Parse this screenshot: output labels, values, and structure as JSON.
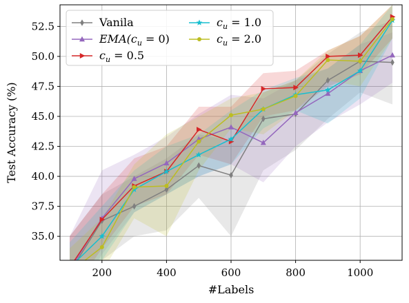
{
  "chart_data": {
    "type": "line",
    "xlabel": "#Labels",
    "ylabel": "Test Accuracy (%)",
    "xlim": [
      70,
      1130
    ],
    "ylim": [
      33.0,
      54.3
    ],
    "xticks": [
      200,
      400,
      600,
      800,
      1000
    ],
    "xtick_labels": [
      "200",
      "400",
      "600",
      "800",
      "1000"
    ],
    "yticks": [
      35.0,
      37.5,
      40.0,
      42.5,
      45.0,
      47.5,
      50.0,
      52.5
    ],
    "ytick_labels": [
      "35.0",
      "37.5",
      "40.0",
      "42.5",
      "45.0",
      "47.5",
      "50.0",
      "52.5"
    ],
    "grid": true,
    "legend_position": "top-left",
    "x": [
      100,
      200,
      300,
      400,
      500,
      600,
      700,
      800,
      900,
      1000,
      1100
    ],
    "series": [
      {
        "name": "Vanila",
        "color": "#7f7f7f",
        "marker": "diamond",
        "values": [
          32.0,
          36.3,
          37.5,
          38.9,
          40.9,
          40.1,
          44.8,
          45.2,
          48.0,
          49.6,
          49.5
        ],
        "band_low": [
          28.5,
          33.0,
          35.0,
          35.5,
          38.2,
          35.0,
          40.5,
          42.2,
          44.8,
          47.0,
          46.0
        ],
        "band_high": [
          35.0,
          38.5,
          40.0,
          41.5,
          43.5,
          43.0,
          47.0,
          48.0,
          50.2,
          52.0,
          53.0
        ]
      },
      {
        "name": "EMA(c_u = 0)",
        "color": "#9467bd",
        "marker": "triangle",
        "values": [
          32.2,
          36.5,
          39.8,
          41.1,
          43.1,
          44.1,
          42.8,
          45.3,
          46.9,
          48.8,
          50.1
        ],
        "band_low": [
          29.0,
          33.5,
          37.0,
          38.5,
          40.0,
          41.0,
          39.5,
          42.5,
          44.5,
          46.0,
          47.8
        ],
        "band_high": [
          35.0,
          40.5,
          41.8,
          43.3,
          45.2,
          46.8,
          46.5,
          48.0,
          49.0,
          51.0,
          52.0
        ]
      },
      {
        "name": "c_u = 0.5",
        "color": "#d62728",
        "marker": "triangle-right",
        "values": [
          32.4,
          36.4,
          39.2,
          40.4,
          43.9,
          42.9,
          47.3,
          47.4,
          50.0,
          50.1,
          53.3
        ],
        "band_low": [
          30.0,
          34.0,
          37.5,
          38.5,
          41.8,
          41.0,
          45.0,
          45.5,
          47.5,
          48.5,
          51.5
        ],
        "band_high": [
          35.0,
          38.5,
          41.5,
          42.5,
          45.8,
          45.8,
          48.6,
          48.8,
          50.5,
          51.7,
          54.3
        ]
      },
      {
        "name": "c_u = 1.0",
        "color": "#17becf",
        "marker": "star",
        "values": [
          32.4,
          35.0,
          38.9,
          40.4,
          41.8,
          43.1,
          45.6,
          46.8,
          47.2,
          48.8,
          53.0
        ],
        "band_low": [
          30.5,
          33.0,
          37.0,
          38.5,
          40.0,
          41.0,
          44.0,
          45.5,
          44.4,
          46.5,
          51.5
        ],
        "band_high": [
          34.5,
          37.5,
          40.5,
          42.5,
          43.5,
          45.5,
          47.2,
          48.2,
          49.0,
          51.0,
          54.3
        ]
      },
      {
        "name": "c_u = 2.0",
        "color": "#bcbd22",
        "marker": "circle",
        "values": [
          32.0,
          34.1,
          39.1,
          39.2,
          42.9,
          45.1,
          45.6,
          46.7,
          49.7,
          49.6,
          53.1
        ],
        "band_low": [
          30.0,
          32.0,
          36.5,
          35.0,
          40.5,
          44.0,
          43.5,
          45.5,
          48.0,
          47.5,
          51.5
        ],
        "band_high": [
          34.0,
          36.5,
          41.0,
          43.5,
          45.0,
          46.5,
          47.0,
          48.0,
          50.5,
          51.7,
          54.3
        ]
      }
    ]
  },
  "legend": {
    "entries": [
      {
        "series": 0,
        "label": "Vanila",
        "italic": false,
        "col": 0,
        "row": 0
      },
      {
        "series": 1,
        "label": "EMA(c_u = 0)",
        "prefix": "EMA(",
        "var": "c",
        "sub": "u",
        "suffix": " = 0)",
        "italic": true,
        "col": 0,
        "row": 1
      },
      {
        "series": 2,
        "label": "c_u = 0.5",
        "prefix": "",
        "var": "c",
        "sub": "u",
        "suffix": " = 0.5",
        "italic": true,
        "col": 0,
        "row": 2
      },
      {
        "series": 3,
        "label": "c_u = 1.0",
        "prefix": "",
        "var": "c",
        "sub": "u",
        "suffix": " = 1.0",
        "italic": true,
        "col": 1,
        "row": 0
      },
      {
        "series": 4,
        "label": "c_u = 2.0",
        "prefix": "",
        "var": "c",
        "sub": "u",
        "suffix": " = 2.0",
        "italic": true,
        "col": 1,
        "row": 1
      }
    ]
  }
}
